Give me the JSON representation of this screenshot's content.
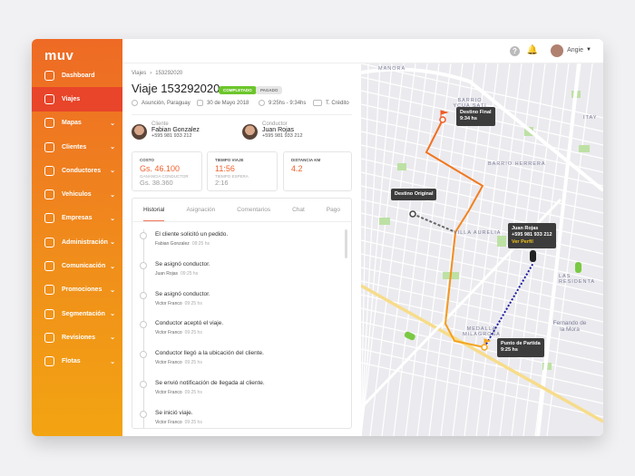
{
  "app": {
    "logo": "muv"
  },
  "sidebar": {
    "items": [
      {
        "label": "Dashboard",
        "icon": "dashboard-icon",
        "chevron": false
      },
      {
        "label": "Viajes",
        "icon": "car-icon",
        "chevron": false,
        "active": true
      },
      {
        "label": "Mapas",
        "icon": "map-icon",
        "chevron": true
      },
      {
        "label": "Clientes",
        "icon": "user-icon",
        "chevron": true
      },
      {
        "label": "Conductores",
        "icon": "steering-wheel-icon",
        "chevron": true
      },
      {
        "label": "Vehiculos",
        "icon": "vehicle-icon",
        "chevron": true
      },
      {
        "label": "Empresas",
        "icon": "briefcase-icon",
        "chevron": true
      },
      {
        "label": "Administración",
        "icon": "admin-icon",
        "chevron": true
      },
      {
        "label": "Comunicación",
        "icon": "mail-icon",
        "chevron": true
      },
      {
        "label": "Promociones",
        "icon": "tag-icon",
        "chevron": true
      },
      {
        "label": "Segmentación",
        "icon": "chart-icon",
        "chevron": true
      },
      {
        "label": "Revisiones",
        "icon": "list-icon",
        "chevron": true
      },
      {
        "label": "Flotas",
        "icon": "fleet-icon",
        "chevron": true
      }
    ]
  },
  "topbar": {
    "user": "Angie",
    "help": "?"
  },
  "trip": {
    "breadcrumb": [
      "Viajes",
      "›",
      "153292020"
    ],
    "title": "Viaje 153292020",
    "badges": [
      "COMPLETADO",
      "PAGADO"
    ],
    "location": "Asunción, Paraguay",
    "date": "30 de Mayo 2018",
    "time": "9:25hs - 9:34hs",
    "payment": "T. Crédito",
    "client": {
      "label": "Cliente",
      "name": "Fabian Gonzalez",
      "phone": "+595 981 933 212"
    },
    "driver": {
      "label": "Conductor",
      "name": "Juan Rojas",
      "phone": "+595 981 933 212"
    },
    "stats": [
      {
        "label": "COSTO",
        "value": "Gs. 46.100",
        "sub_label": "GANANCIA CONDUCTOR",
        "sub_value": "Gs. 38.360"
      },
      {
        "label": "TIEMPO VIAJE",
        "value": "11:56",
        "sub_label": "TIEMPO ESPERA",
        "sub_value": "2:16"
      },
      {
        "label": "DISTANCIA KM",
        "value": "4.2"
      }
    ]
  },
  "tabs": [
    "Historial",
    "Asignación",
    "Comentarios",
    "Chat",
    "Pago"
  ],
  "history": [
    {
      "text": "El cliente solicitó un pedido.",
      "who": "Fabian Gonzalez",
      "time": "09:25 hs"
    },
    {
      "text": "Se asignó conductor.",
      "who": "Juan Rojas",
      "time": "09:25 hs"
    },
    {
      "text": "Se asignó conductor.",
      "who": "Victor Franco",
      "time": "09:25 hs"
    },
    {
      "text": "Conductor aceptó el viaje.",
      "who": "Victor Franco",
      "time": "09:25 hs"
    },
    {
      "text": "Conductor llegó a la ubicación del cliente.",
      "who": "Victor Franco",
      "time": "09:25 hs"
    },
    {
      "text": "Se envió notificación de llegada al cliente.",
      "who": "Victor Franco",
      "time": "09:25 hs"
    },
    {
      "text": "Se inició viaje.",
      "who": "Victor Franco",
      "time": "09:25 hs"
    }
  ],
  "map": {
    "labels": [
      "MANORÁ",
      "BARRIO YCUA SATI",
      "ITAY",
      "BARRIO HERRERA",
      "VILLA AURELIA",
      "LAS RESIDENTA",
      "MEDALLA MILAGROSA",
      "Fernando de la Mora"
    ],
    "final": {
      "title": "Destino Final",
      "time": "9:34 hs"
    },
    "original": {
      "title": "Destino Original"
    },
    "driver": {
      "name": "Juan Rojas",
      "phone": "+595 981 933 212",
      "link": "Ver Perfil"
    },
    "start": {
      "title": "Punto de Partida",
      "time": "9:25 hs"
    },
    "colors": {
      "route": "#f5921e",
      "driver_path": "#1a1aa0",
      "original": "#666666",
      "car_available": "#7ac943"
    }
  }
}
